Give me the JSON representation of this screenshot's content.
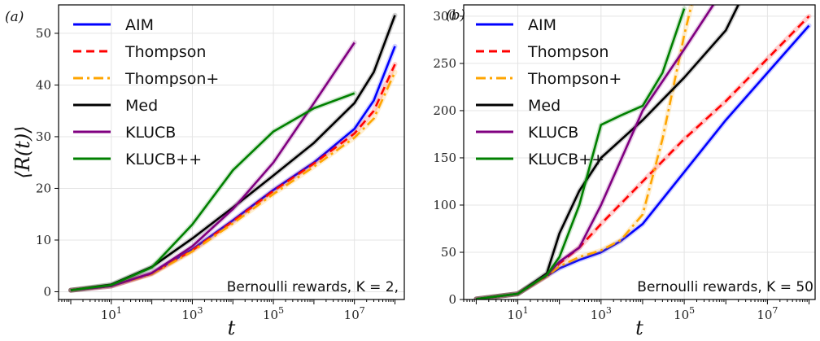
{
  "figure": {
    "panels": [
      {
        "label": "(a)",
        "ylabel": "⟨R(t)⟩",
        "xlabel": "t",
        "annotation": "Bernoulli rewards, K = 2,"
      },
      {
        "label": "(b)",
        "ylabel": "",
        "xlabel": "t",
        "annotation": "Bernoulli rewards, K = 50"
      }
    ]
  },
  "chart_data": [
    {
      "type": "line",
      "panel": "a",
      "xlabel": "t",
      "ylabel": "⟨R(t)⟩",
      "xscale": "log",
      "xlim": [
        0.5,
        170000000
      ],
      "ylim": [
        -1.5,
        55.5
      ],
      "xticks": [
        10,
        1000,
        100000,
        10000000
      ],
      "xtick_labels": [
        "10^1",
        "10^3",
        "10^5",
        "10^7"
      ],
      "yticks": [
        0,
        10,
        20,
        30,
        40,
        50
      ],
      "ytick_labels": [
        "0",
        "10",
        "20",
        "30",
        "40",
        "50"
      ],
      "grid": true,
      "legend_position": "top-left",
      "annotation": "Bernoulli rewards, K = 2,",
      "series": [
        {
          "name": "AIM",
          "color": "#0000ff",
          "dash": "solid",
          "x": [
            1,
            10,
            100,
            1000,
            10000,
            100000,
            1000000,
            10000000,
            30000000,
            100000000
          ],
          "y": [
            0.3,
            1.1,
            3.6,
            8.2,
            13.8,
            19.7,
            25.0,
            31.5,
            37.0,
            47.5
          ]
        },
        {
          "name": "Thompson",
          "color": "#ff0000",
          "dash": "dashed",
          "x": [
            1,
            10,
            100,
            1000,
            10000,
            100000,
            1000000,
            10000000,
            30000000,
            100000000
          ],
          "y": [
            0.3,
            1.1,
            3.5,
            8.0,
            13.6,
            19.5,
            24.8,
            30.6,
            35.0,
            44.0
          ]
        },
        {
          "name": "Thompson+",
          "color": "#ffa500",
          "dash": "dashdot",
          "x": [
            1,
            10,
            100,
            1000,
            10000,
            100000,
            1000000,
            10000000,
            30000000,
            100000000
          ],
          "y": [
            0.3,
            1.1,
            3.4,
            7.8,
            13.2,
            18.9,
            24.2,
            29.8,
            33.5,
            42.5
          ]
        },
        {
          "name": "Med",
          "color": "#000000",
          "dash": "solid",
          "x": [
            1,
            10,
            100,
            1000,
            10000,
            100000,
            1000000,
            10000000,
            30000000,
            100000000
          ],
          "y": [
            0.3,
            1.4,
            4.8,
            10.3,
            16.3,
            22.5,
            28.8,
            36.5,
            42.5,
            53.5
          ]
        },
        {
          "name": "KLUCB",
          "color": "#800080",
          "dash": "solid",
          "x": [
            1,
            10,
            100,
            1000,
            10000,
            100000,
            1000000,
            10000000
          ],
          "y": [
            0.3,
            1.1,
            3.6,
            8.8,
            16.0,
            25.0,
            36.5,
            48.2
          ]
        },
        {
          "name": "KLUCB++",
          "color": "#008000",
          "dash": "solid",
          "x": [
            1,
            10,
            100,
            1000,
            10000,
            100000,
            1000000,
            10000000
          ],
          "y": [
            0.3,
            1.3,
            4.7,
            13.0,
            23.5,
            31.0,
            35.5,
            38.4
          ]
        }
      ]
    },
    {
      "type": "line",
      "panel": "b",
      "xlabel": "t",
      "ylabel": "",
      "xscale": "log",
      "xlim": [
        0.5,
        140000000
      ],
      "ylim": [
        0,
        312
      ],
      "xticks": [
        10,
        1000,
        100000,
        10000000
      ],
      "xtick_labels": [
        "10^1",
        "10^3",
        "10^5",
        "10^7"
      ],
      "yticks": [
        0,
        50,
        100,
        150,
        200,
        250,
        300
      ],
      "ytick_labels": [
        "0",
        "50",
        "100",
        "150",
        "200",
        "250",
        "300"
      ],
      "grid": true,
      "legend_position": "top-left",
      "annotation": "Bernoulli rewards, K = 50",
      "series": [
        {
          "name": "AIM",
          "color": "#0000ff",
          "dash": "solid",
          "x": [
            1,
            10,
            50,
            100,
            300,
            1000,
            3000,
            10000,
            100000,
            1000000,
            10000000,
            100000000
          ],
          "y": [
            0.5,
            6,
            25,
            33,
            42,
            50,
            62,
            80,
            135,
            190,
            240,
            290
          ]
        },
        {
          "name": "Thompson",
          "color": "#ff0000",
          "dash": "dashed",
          "x": [
            1,
            10,
            50,
            100,
            300,
            1000,
            10000,
            100000,
            1000000,
            10000000,
            100000000
          ],
          "y": [
            0.5,
            6,
            25,
            38,
            55,
            80,
            125,
            170,
            210,
            255,
            300
          ]
        },
        {
          "name": "Thompson+",
          "color": "#ffa500",
          "dash": "dashdot",
          "x": [
            1,
            10,
            50,
            100,
            300,
            1000,
            3000,
            10000,
            30000,
            100000,
            150000
          ],
          "y": [
            0.5,
            6,
            25,
            35,
            45,
            52,
            63,
            90,
            170,
            280,
            312
          ]
        },
        {
          "name": "Med",
          "color": "#000000",
          "dash": "solid",
          "x": [
            1,
            10,
            50,
            100,
            300,
            1000,
            10000,
            100000,
            1000000,
            2000000
          ],
          "y": [
            0.5,
            6,
            28,
            70,
            115,
            150,
            190,
            235,
            285,
            312
          ]
        },
        {
          "name": "KLUCB",
          "color": "#800080",
          "dash": "solid",
          "x": [
            1,
            10,
            50,
            100,
            300,
            1000,
            10000,
            100000,
            500000
          ],
          "y": [
            0.5,
            6,
            26,
            40,
            55,
            100,
            200,
            265,
            312
          ]
        },
        {
          "name": "KLUCB++",
          "color": "#008000",
          "dash": "solid",
          "x": [
            1,
            10,
            50,
            100,
            300,
            1000,
            3000,
            10000,
            30000,
            100000
          ],
          "y": [
            0.5,
            6,
            26,
            45,
            100,
            185,
            195,
            205,
            240,
            308
          ]
        }
      ]
    }
  ]
}
